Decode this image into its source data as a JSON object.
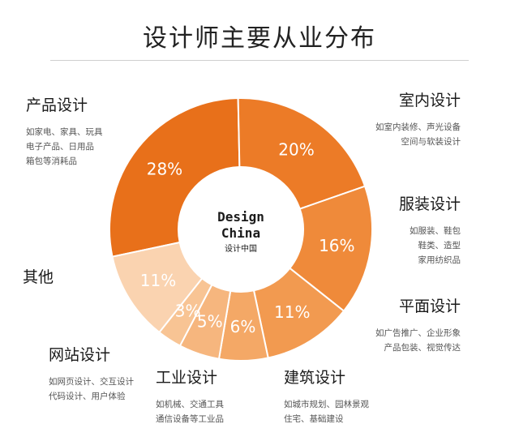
{
  "chart_data": {
    "type": "donut",
    "title": "设计师主要从业分布",
    "center_logo": {
      "line1": "Design",
      "line2": "China",
      "line3": "设计中国"
    },
    "slices": [
      {
        "label": "产品设计",
        "value": 28,
        "value_label": "28%",
        "color": "#E8701A",
        "desc": [
          "如家电、家具、玩具",
          "电子产品、日用品",
          "箱包等消耗品"
        ]
      },
      {
        "label": "室内设计",
        "value": 20,
        "value_label": "20%",
        "color": "#EC7B27",
        "desc": [
          "如室内装修、声光设备",
          "空间与软装设计"
        ]
      },
      {
        "label": "服装设计",
        "value": 16,
        "value_label": "16%",
        "color": "#EF8A3A",
        "desc": [
          "如服装、鞋包",
          "鞋类、造型",
          "家用纺织品"
        ]
      },
      {
        "label": "平面设计",
        "value": 11,
        "value_label": "11%",
        "color": "#F29A50",
        "desc": [
          "如广告推广、企业形象",
          "产品包装、视觉传达"
        ]
      },
      {
        "label": "建筑设计",
        "value": 6,
        "value_label": "6%",
        "color": "#F4A866",
        "desc": [
          "如城市规划、园林景观",
          "住宅、基础建设"
        ]
      },
      {
        "label": "工业设计",
        "value": 5,
        "value_label": "5%",
        "color": "#F6B67E",
        "desc": [
          "如机械、交通工具",
          "通信设备等工业品"
        ]
      },
      {
        "label": "网站设计",
        "value": 3,
        "value_label": "3%",
        "color": "#F8C494",
        "desc": [
          "如网页设计、交互设计",
          "代码设计、用户体验"
        ]
      },
      {
        "label": "其他",
        "value": 11,
        "value_label": "11%",
        "color": "#FAD3B0",
        "desc": []
      }
    ]
  }
}
